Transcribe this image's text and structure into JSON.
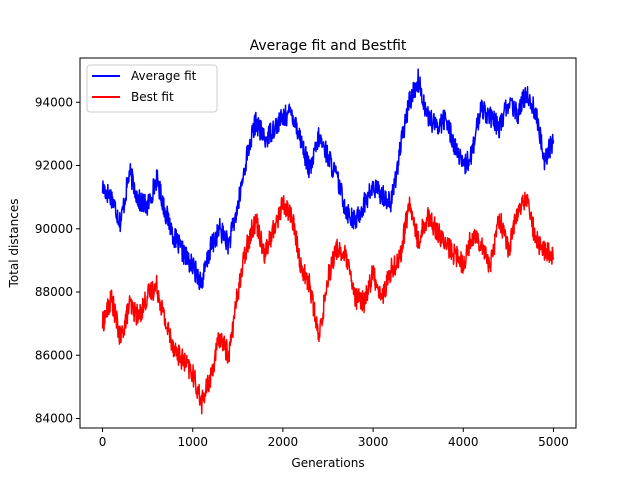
{
  "chart_data": {
    "type": "line",
    "title": "Average fit and Bestfit",
    "xlabel": "Generations",
    "ylabel": "Total distances",
    "xlim": [
      -250,
      5250
    ],
    "ylim": [
      83700,
      95400
    ],
    "xticks": [
      0,
      1000,
      2000,
      3000,
      4000,
      5000
    ],
    "xtick_labels": [
      "0",
      "1000",
      "2000",
      "3000",
      "4000",
      "5000"
    ],
    "yticks": [
      84000,
      86000,
      88000,
      90000,
      92000,
      94000
    ],
    "ytick_labels": [
      "84000",
      "86000",
      "88000",
      "90000",
      "92000",
      "94000"
    ],
    "grid": false,
    "legend_position": "top-left",
    "series": [
      {
        "name": "Average fit",
        "color": "#0000ff",
        "x": [
          0,
          100,
          200,
          300,
          400,
          500,
          600,
          700,
          800,
          900,
          1000,
          1100,
          1200,
          1300,
          1400,
          1500,
          1600,
          1700,
          1800,
          1900,
          2000,
          2100,
          2200,
          2300,
          2400,
          2500,
          2600,
          2700,
          2800,
          2900,
          3000,
          3100,
          3200,
          3300,
          3400,
          3500,
          3600,
          3700,
          3800,
          3900,
          4000,
          4100,
          4200,
          4300,
          4400,
          4500,
          4600,
          4700,
          4800,
          4900,
          5000
        ],
        "values": [
          91300,
          91000,
          90200,
          91800,
          90900,
          90700,
          91600,
          90500,
          89700,
          89200,
          88800,
          88300,
          89400,
          90000,
          89500,
          90700,
          92300,
          93400,
          92800,
          93200,
          93500,
          93700,
          92800,
          91800,
          92900,
          92300,
          91600,
          90600,
          90200,
          90800,
          91300,
          91100,
          90800,
          92500,
          94000,
          94700,
          93600,
          93200,
          93500,
          92700,
          91900,
          92400,
          93900,
          93500,
          93200,
          94000,
          93600,
          94300,
          93700,
          92200,
          92800
        ]
      },
      {
        "name": "Best fit",
        "color": "#ff0000",
        "x": [
          0,
          100,
          200,
          300,
          400,
          500,
          600,
          700,
          800,
          900,
          1000,
          1100,
          1200,
          1300,
          1400,
          1500,
          1600,
          1700,
          1800,
          1900,
          2000,
          2100,
          2200,
          2300,
          2400,
          2500,
          2600,
          2700,
          2800,
          2900,
          3000,
          3100,
          3200,
          3300,
          3400,
          3500,
          3600,
          3700,
          3800,
          3900,
          4000,
          4100,
          4200,
          4300,
          4400,
          4500,
          4600,
          4700,
          4800,
          4900,
          5000
        ],
        "values": [
          87000,
          87800,
          86500,
          87600,
          87200,
          87900,
          88200,
          87000,
          86200,
          85800,
          85400,
          84500,
          85300,
          86600,
          86000,
          88000,
          89500,
          90300,
          89200,
          90000,
          90800,
          90400,
          88800,
          88200,
          86500,
          88500,
          89400,
          89100,
          87800,
          87700,
          88600,
          87800,
          88700,
          89100,
          90800,
          89600,
          90400,
          90000,
          89500,
          89200,
          88900,
          89800,
          89600,
          88800,
          90400,
          89300,
          90500,
          91000,
          89700,
          89300,
          89100
        ]
      }
    ]
  }
}
